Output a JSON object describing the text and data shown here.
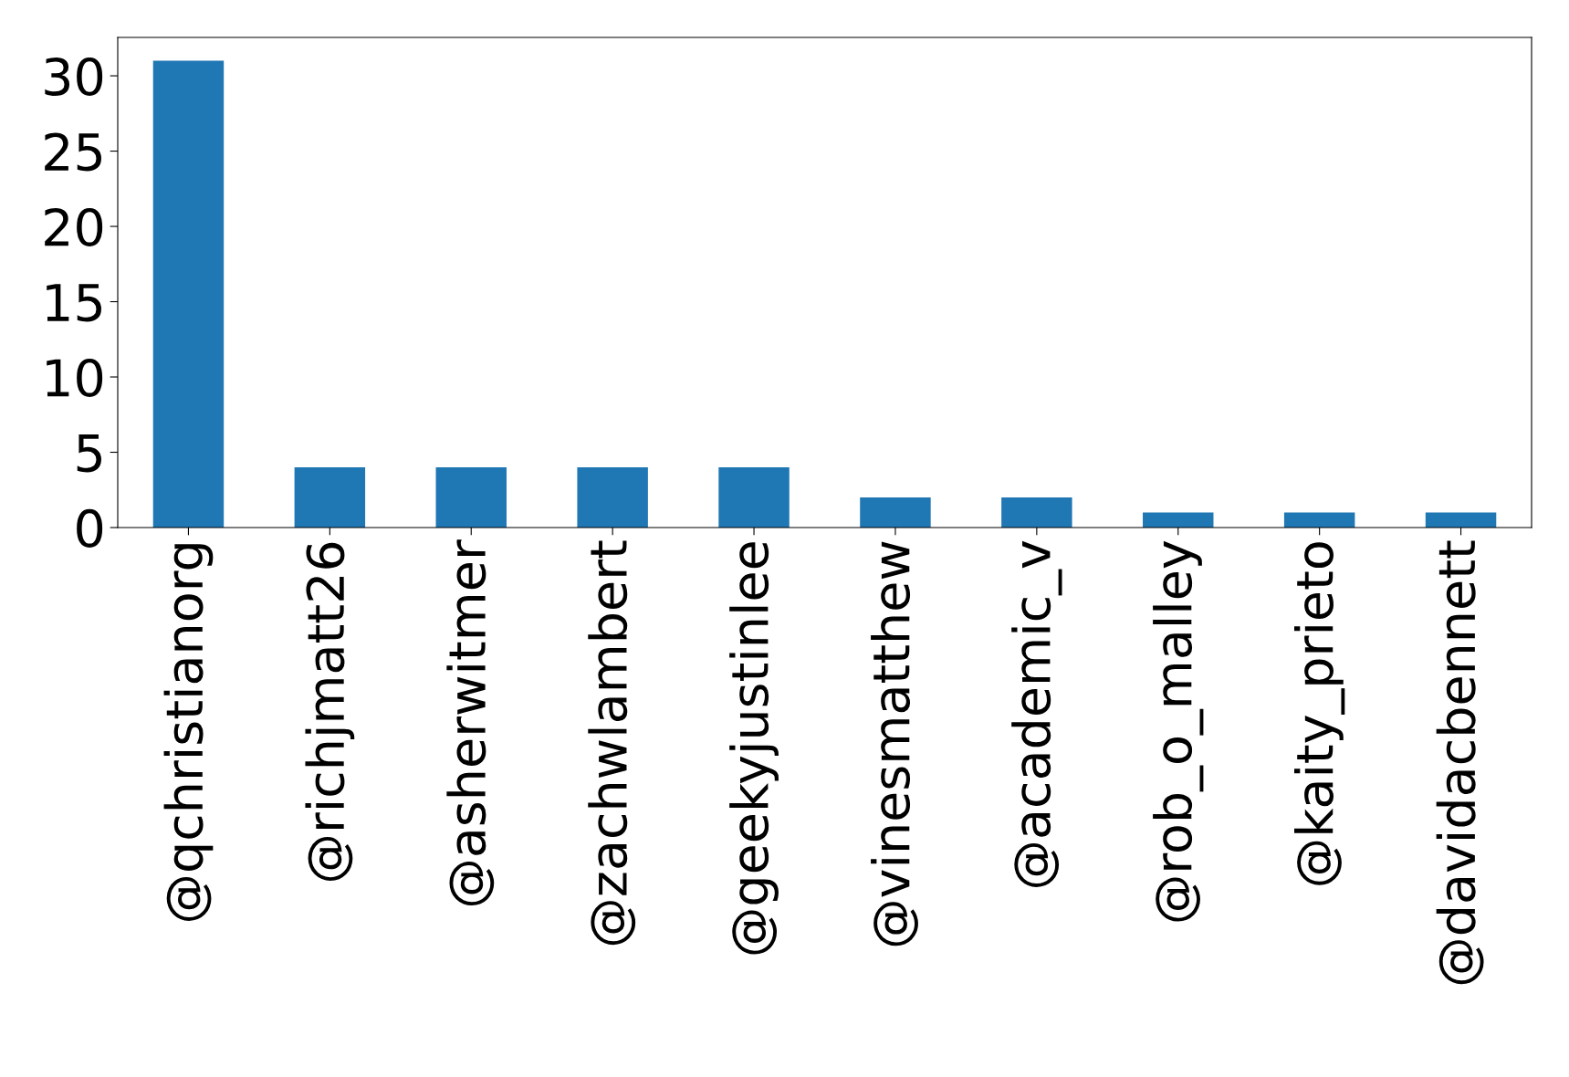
{
  "chart_data": {
    "type": "bar",
    "categories": [
      "@qchristianorg",
      "@richjmatt26",
      "@asherwitmer",
      "@zachwlambert",
      "@geekyjustinlee",
      "@vinesmatthew",
      "@academic_v",
      "@rob_o_malley",
      "@kaity_prieto",
      "@davidacbennett"
    ],
    "values": [
      31,
      4,
      4,
      4,
      4,
      2,
      2,
      1,
      1,
      1
    ],
    "color": "#1f77b4",
    "ylim": [
      0,
      32.55
    ],
    "yticks": [
      0,
      5,
      10,
      15,
      20,
      25,
      30
    ],
    "grid": false
  }
}
